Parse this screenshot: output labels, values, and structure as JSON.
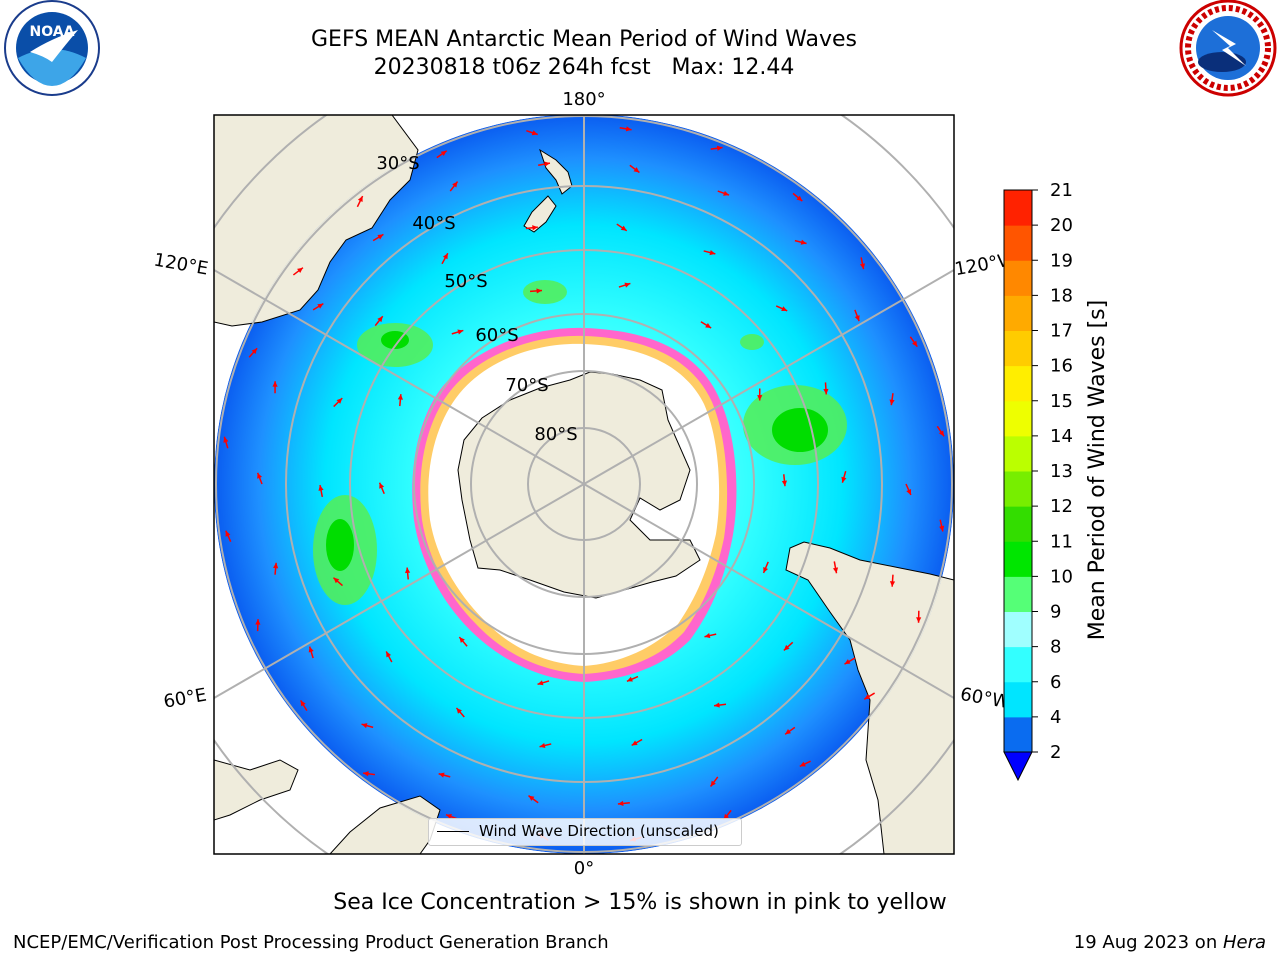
{
  "title": {
    "line1": "GEFS MEAN Antarctic Mean Period of Wind Waves",
    "line2": "20230818 t06z 264h fcst   Max: 12.44"
  },
  "logos": {
    "left": {
      "icon": "noaa-logo",
      "text": "NOAA"
    },
    "right": {
      "icon": "nws-logo"
    }
  },
  "map": {
    "projection": "south-polar-stereographic",
    "longitude_labels": {
      "top": "180°",
      "bottom": "0°",
      "left_upper": "120°E",
      "left_lower": "60°E",
      "right_upper": "120°W",
      "right_lower": "60°W"
    },
    "latitude_labels": [
      "30°S",
      "40°S",
      "50°S",
      "60°S",
      "70°S",
      "80°S"
    ],
    "legend": {
      "label": "Wind Wave Direction (unscaled)"
    },
    "colors": {
      "land": "#efecdc",
      "ocean_dark": "#0a5cf0",
      "ocean_mid": "#1e90ff",
      "ocean_light": "#00f0ff",
      "ocean_pale": "#a0ffff",
      "green": "#00e000",
      "ice_pink": "#ff66cc",
      "ice_yellow": "#ffcc66",
      "arrow": "#ff0000",
      "grid": "#b0b0b0"
    }
  },
  "colorbar": {
    "label": "Mean Period of Wind Waves [s]",
    "ticks": [
      "2",
      "4",
      "6",
      "8",
      "9",
      "10",
      "11",
      "12",
      "13",
      "14",
      "15",
      "16",
      "17",
      "18",
      "19",
      "20",
      "21"
    ],
    "levels": [
      2,
      4,
      6,
      8,
      9,
      10,
      11,
      12,
      13,
      14,
      15,
      16,
      17,
      18,
      19,
      20,
      21
    ],
    "colors": [
      "#0000ff",
      "#0a6cf0",
      "#00e5ff",
      "#33ffff",
      "#a0ffff",
      "#55ff77",
      "#00e600",
      "#33dd00",
      "#77ee00",
      "#bbff00",
      "#eeff00",
      "#ffee00",
      "#ffcc00",
      "#ffaa00",
      "#ff8800",
      "#ff5500",
      "#ff2200",
      "#ff0000"
    ]
  },
  "footer": {
    "note": "Sea Ice Concentration > 15% is shown in pink to yellow",
    "left": "NCEP/EMC/Verification Post Processing Product Generation Branch",
    "right_prefix": "19 Aug 2023 on ",
    "right_italic": "Hera"
  }
}
